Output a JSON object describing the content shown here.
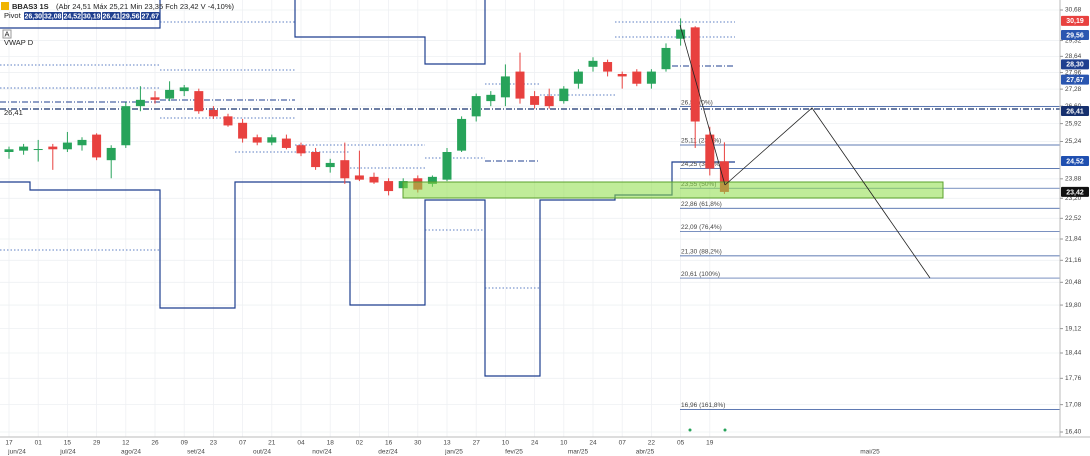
{
  "chart_data": {
    "type": "candlestick",
    "symbol": "BBAS3 1S",
    "quote": "(Abr 24,51 Máx 25,21 Min 23,35 Fch 23,42 V -4,10%)",
    "pivot_label": "Pivot",
    "pivot_values": [
      "26,30",
      "32,08",
      "24,52",
      "30,19",
      "26,41",
      "29,56",
      "27,67"
    ],
    "auto_button": "A",
    "indicator": "VWAP D",
    "left_label": "26,41",
    "log_scale": true,
    "grid": true,
    "up_color": "#27a35a",
    "down_color": "#e8413f",
    "categories": [
      "17",
      null,
      "01",
      null,
      "15",
      null,
      "29",
      null,
      "12",
      null,
      "26",
      null,
      "09",
      null,
      "23",
      null,
      "07",
      null,
      "21",
      null,
      "04",
      null,
      "18",
      null,
      "02",
      null,
      "16",
      null,
      "30",
      null,
      "13",
      null,
      "27",
      null,
      "10",
      null,
      "24",
      null,
      "10",
      null,
      "24",
      null,
      "07",
      null,
      "22",
      null,
      "05",
      null,
      "19",
      null
    ],
    "months": [
      "jun/24",
      "jul/24",
      "ago/24",
      "set/24",
      "out/24",
      "nov/24",
      "dez/24",
      "jan/25",
      "fev/25",
      "mar/25",
      "abr/25",
      "mai/25"
    ],
    "open": [
      24.85,
      24.9,
      24.95,
      25.05,
      24.95,
      25.1,
      25.5,
      24.55,
      25.1,
      26.6,
      26.95,
      26.9,
      27.2,
      27.2,
      26.45,
      26.2,
      25.95,
      25.4,
      25.2,
      25.35,
      25.1,
      24.85,
      24.3,
      24.55,
      24.0,
      23.95,
      23.8,
      23.55,
      23.9,
      23.7,
      23.85,
      24.9,
      26.2,
      26.8,
      26.95,
      28.0,
      27.0,
      27.0,
      26.8,
      27.5,
      28.2,
      28.4,
      27.9,
      28.0,
      27.5,
      28.1,
      29.4,
      29.9,
      25.5,
      24.51
    ],
    "high": [
      25.05,
      25.15,
      25.3,
      25.15,
      25.6,
      25.4,
      25.55,
      25.1,
      26.75,
      27.4,
      27.2,
      27.6,
      27.45,
      27.3,
      26.6,
      26.3,
      26.1,
      25.5,
      25.5,
      25.5,
      25.2,
      25.0,
      24.6,
      25.2,
      24.9,
      24.1,
      23.9,
      23.9,
      24.0,
      24.0,
      25.0,
      26.2,
      27.1,
      27.2,
      28.3,
      28.8,
      27.2,
      27.3,
      27.4,
      28.1,
      28.6,
      28.5,
      28.0,
      28.1,
      28.1,
      29.2,
      30.3,
      29.95,
      25.8,
      25.21
    ],
    "low": [
      24.6,
      24.75,
      24.5,
      24.2,
      24.85,
      24.9,
      24.55,
      23.9,
      25.0,
      26.4,
      26.7,
      26.8,
      27.0,
      26.3,
      26.1,
      25.8,
      25.2,
      25.1,
      25.1,
      24.95,
      24.7,
      24.2,
      24.1,
      23.7,
      23.8,
      23.7,
      23.3,
      23.5,
      23.4,
      23.6,
      23.8,
      24.85,
      26.0,
      26.6,
      26.6,
      26.7,
      26.5,
      26.5,
      26.7,
      27.3,
      28.0,
      27.8,
      27.3,
      27.4,
      27.3,
      28.0,
      29.1,
      25.0,
      24.0,
      23.35
    ],
    "close": [
      24.95,
      25.05,
      24.96,
      24.95,
      25.2,
      25.3,
      24.65,
      25.0,
      26.6,
      26.85,
      26.85,
      27.25,
      27.35,
      26.4,
      26.2,
      25.85,
      25.35,
      25.2,
      25.4,
      25.0,
      24.8,
      24.3,
      24.45,
      23.9,
      23.85,
      23.75,
      23.45,
      23.8,
      23.5,
      23.95,
      24.85,
      26.1,
      27.0,
      27.05,
      27.8,
      26.9,
      26.65,
      26.6,
      27.3,
      28.0,
      28.45,
      28.0,
      27.8,
      27.5,
      28.0,
      29.0,
      29.8,
      26.0,
      24.25,
      23.42
    ],
    "ylim": [
      16.4,
      30.68
    ],
    "yticks": [
      {
        "value": 30.68,
        "label": "30,68"
      },
      {
        "value": 29.32,
        "label": "29,32"
      },
      {
        "value": 28.64,
        "label": "28,64"
      },
      {
        "value": 27.96,
        "label": "27,96"
      },
      {
        "value": 27.28,
        "label": "27,28"
      },
      {
        "value": 26.6,
        "label": "26,60"
      },
      {
        "value": 25.92,
        "label": "25,92"
      },
      {
        "value": 25.24,
        "label": "25,24"
      },
      {
        "value": 23.88,
        "label": "23,88"
      },
      {
        "value": 23.2,
        "label": "23,20"
      },
      {
        "value": 22.52,
        "label": "22,52"
      },
      {
        "value": 21.84,
        "label": "21,84"
      },
      {
        "value": 21.16,
        "label": "21,16"
      },
      {
        "value": 20.48,
        "label": "20,48"
      },
      {
        "value": 19.8,
        "label": "19,80"
      },
      {
        "value": 19.12,
        "label": "19,12"
      },
      {
        "value": 18.44,
        "label": "18,44"
      },
      {
        "value": 17.76,
        "label": "17,76"
      },
      {
        "value": 17.08,
        "label": "17,08"
      },
      {
        "value": 16.4,
        "label": "16,40"
      }
    ],
    "fib_levels": [
      {
        "value": 26.58,
        "label": "26,58 (0%)"
      },
      {
        "value": 25.11,
        "label": "25,11 (23,6%)"
      },
      {
        "value": 24.25,
        "label": "24,25 (38,2%)"
      },
      {
        "value": 23.55,
        "label": "23,55 (50%)"
      },
      {
        "value": 22.86,
        "label": "22,86 (61,8%)"
      },
      {
        "value": 22.09,
        "label": "22,09 (76,4%)"
      },
      {
        "value": 21.3,
        "label": "21,30 (88,2%)"
      },
      {
        "value": 20.61,
        "label": "20,61 (100%)"
      },
      {
        "value": 16.96,
        "label": "16,96 (161,8%)"
      }
    ],
    "price_tags": [
      {
        "value": 30.19,
        "label": "30,19",
        "color": "#e8413f"
      },
      {
        "value": 29.56,
        "label": "29,56",
        "color": "#2a56b0"
      },
      {
        "value": 28.3,
        "label": "28,30",
        "color": "#1f3f8f"
      },
      {
        "value": 27.67,
        "label": "27,67",
        "color": "#2a56b0"
      },
      {
        "value": 26.41,
        "label": "26,41",
        "color": "#16306e"
      },
      {
        "value": 24.52,
        "label": "24,52",
        "color": "#1f4fb0"
      },
      {
        "value": 23.42,
        "label": "23,42",
        "color": "#111111"
      }
    ]
  }
}
